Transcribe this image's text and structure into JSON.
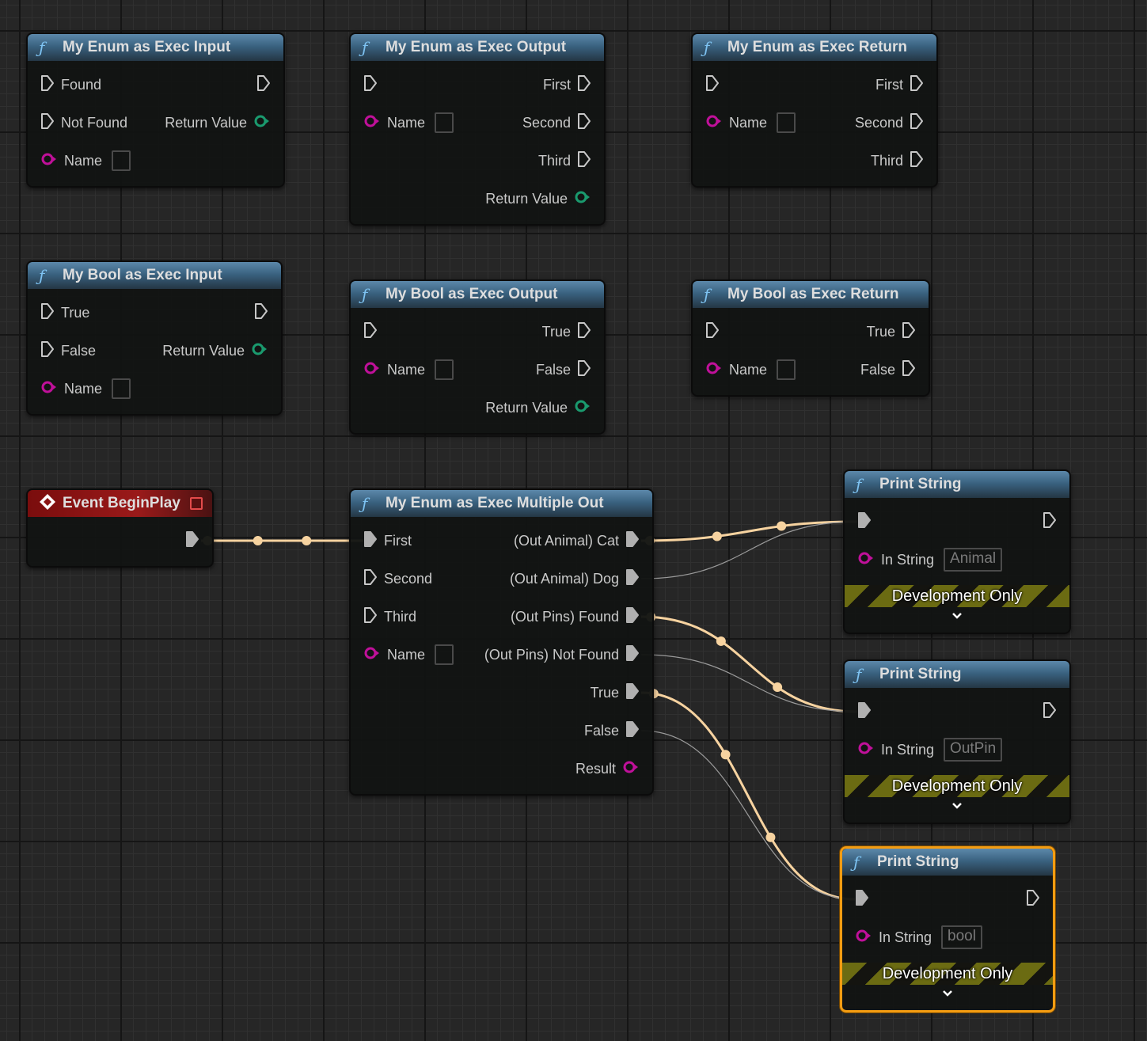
{
  "colors": {
    "exec_wire": "#f7d3a0",
    "inactive_wire": "#9a9a9a",
    "string_pin": "#c0109a",
    "bool_pin": "#1a9a6e",
    "exec_pin": "#c8c8c8",
    "selection": "#f39c12",
    "function_header": "#3a6280",
    "event_header": "#9a1a1a"
  },
  "nodes": [
    {
      "id": "enum_in",
      "kind": "function",
      "icon": "function-icon",
      "title": "My Enum as Exec Input",
      "rows": [
        {
          "l": {
            "pin": "exec",
            "label": "Found"
          },
          "r": {
            "pin": "exec"
          }
        },
        {
          "l": {
            "pin": "exec",
            "label": "Not Found"
          },
          "r": {
            "pin": "bool",
            "label": "Return Value"
          }
        },
        {
          "l": {
            "pin": "string",
            "label": "Name",
            "box": true
          }
        }
      ]
    },
    {
      "id": "enum_out",
      "kind": "function",
      "icon": "function-icon",
      "title": "My Enum as Exec Output",
      "rows": [
        {
          "l": {
            "pin": "exec"
          },
          "r": {
            "pin": "exec",
            "label": "First"
          }
        },
        {
          "l": {
            "pin": "string",
            "label": "Name",
            "box": true
          },
          "r": {
            "pin": "exec",
            "label": "Second"
          }
        },
        {
          "r": {
            "pin": "exec",
            "label": "Third"
          }
        },
        {
          "r": {
            "pin": "bool",
            "label": "Return Value"
          }
        }
      ]
    },
    {
      "id": "enum_ret",
      "kind": "function",
      "icon": "function-icon",
      "title": "My Enum as Exec Return",
      "rows": [
        {
          "l": {
            "pin": "exec"
          },
          "r": {
            "pin": "exec",
            "label": "First"
          }
        },
        {
          "l": {
            "pin": "string",
            "label": "Name",
            "box": true
          },
          "r": {
            "pin": "exec",
            "label": "Second"
          }
        },
        {
          "r": {
            "pin": "exec",
            "label": "Third"
          }
        }
      ]
    },
    {
      "id": "bool_in",
      "kind": "function",
      "icon": "function-icon",
      "title": "My Bool as Exec Input",
      "rows": [
        {
          "l": {
            "pin": "exec",
            "label": "True"
          },
          "r": {
            "pin": "exec"
          }
        },
        {
          "l": {
            "pin": "exec",
            "label": "False"
          },
          "r": {
            "pin": "bool",
            "label": "Return Value"
          }
        },
        {
          "l": {
            "pin": "string",
            "label": "Name",
            "box": true
          }
        }
      ]
    },
    {
      "id": "bool_out",
      "kind": "function",
      "icon": "function-icon",
      "title": "My Bool as Exec Output",
      "rows": [
        {
          "l": {
            "pin": "exec"
          },
          "r": {
            "pin": "exec",
            "label": "True"
          }
        },
        {
          "l": {
            "pin": "string",
            "label": "Name",
            "box": true
          },
          "r": {
            "pin": "exec",
            "label": "False"
          }
        },
        {
          "r": {
            "pin": "bool",
            "label": "Return Value"
          }
        }
      ]
    },
    {
      "id": "bool_ret",
      "kind": "function",
      "icon": "function-icon",
      "title": "My Bool as Exec Return",
      "rows": [
        {
          "l": {
            "pin": "exec"
          },
          "r": {
            "pin": "exec",
            "label": "True"
          }
        },
        {
          "l": {
            "pin": "string",
            "label": "Name",
            "box": true
          },
          "r": {
            "pin": "exec",
            "label": "False"
          }
        }
      ]
    },
    {
      "id": "begin",
      "kind": "event",
      "icon": "event-icon",
      "title": "Event BeginPlay",
      "rows": [
        {
          "r": {
            "pin": "exec-on",
            "id": "begin_out"
          }
        }
      ]
    },
    {
      "id": "multi",
      "kind": "function",
      "icon": "function-icon",
      "title": "My Enum as Exec Multiple Out",
      "rows": [
        {
          "l": {
            "pin": "exec-on",
            "label": "First",
            "id": "multi_in"
          },
          "r": {
            "pin": "exec-on",
            "label": "(Out Animal) Cat",
            "id": "cat"
          }
        },
        {
          "l": {
            "pin": "exec",
            "label": "Second"
          },
          "r": {
            "pin": "exec-on",
            "label": "(Out Animal) Dog",
            "id": "dog"
          }
        },
        {
          "l": {
            "pin": "exec",
            "label": "Third"
          },
          "r": {
            "pin": "exec-on",
            "label": "(Out Pins) Found",
            "id": "found"
          }
        },
        {
          "l": {
            "pin": "string",
            "label": "Name",
            "box": true
          },
          "r": {
            "pin": "exec-on",
            "label": "(Out Pins) Not Found",
            "id": "notfound"
          }
        },
        {
          "r": {
            "pin": "exec-on",
            "label": "True",
            "id": "true"
          }
        },
        {
          "r": {
            "pin": "exec-on",
            "label": "False",
            "id": "false"
          }
        },
        {
          "r": {
            "pin": "string-out",
            "label": "Result"
          }
        }
      ]
    },
    {
      "id": "ps1",
      "kind": "function",
      "icon": "function-icon",
      "title": "Print String",
      "dev": "Development Only",
      "rows": [
        {
          "l": {
            "pin": "exec-on",
            "id": "ps1_in"
          },
          "r": {
            "pin": "exec"
          }
        },
        {
          "l": {
            "pin": "string",
            "label": "In String",
            "value": "Animal"
          }
        }
      ]
    },
    {
      "id": "ps2",
      "kind": "function",
      "icon": "function-icon",
      "title": "Print String",
      "dev": "Development Only",
      "rows": [
        {
          "l": {
            "pin": "exec-on",
            "id": "ps2_in"
          },
          "r": {
            "pin": "exec"
          }
        },
        {
          "l": {
            "pin": "string",
            "label": "In String",
            "value": "OutPin"
          }
        }
      ]
    },
    {
      "id": "ps3",
      "kind": "function",
      "icon": "function-icon",
      "title": "Print String",
      "dev": "Development Only",
      "selected": true,
      "rows": [
        {
          "l": {
            "pin": "exec-on",
            "id": "ps3_in"
          },
          "r": {
            "pin": "exec"
          }
        },
        {
          "l": {
            "pin": "string",
            "label": "In String",
            "value": "bool"
          }
        }
      ]
    }
  ],
  "wires": [
    {
      "from": "begin_out",
      "to": "multi_in",
      "active": true
    },
    {
      "from": "cat",
      "to": "ps1_in",
      "active": true
    },
    {
      "from": "dog",
      "to": "ps1_in",
      "active": false
    },
    {
      "from": "found",
      "to": "ps2_in",
      "active": true
    },
    {
      "from": "notfound",
      "to": "ps2_in",
      "active": false
    },
    {
      "from": "true",
      "to": "ps3_in",
      "active": true
    },
    {
      "from": "false",
      "to": "ps3_in",
      "active": false
    }
  ]
}
